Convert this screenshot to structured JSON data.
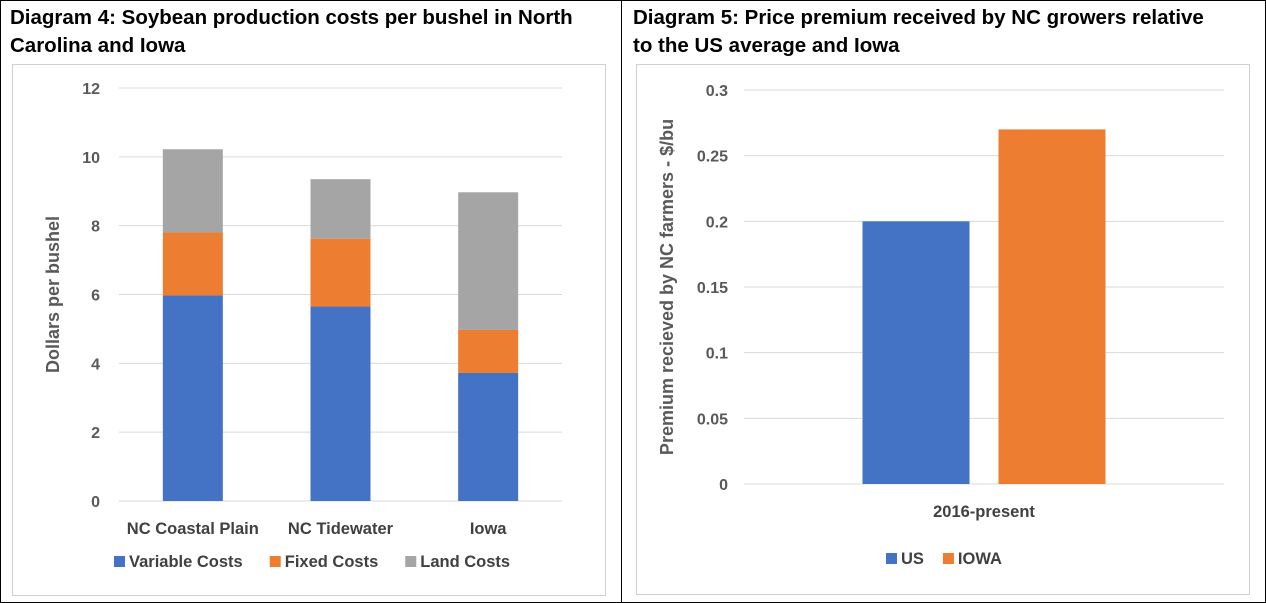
{
  "chart_data": [
    {
      "type": "bar",
      "stacked": true,
      "title": "Diagram 4: Soybean production costs per bushel in North Carolina and Iowa",
      "title_lines": [
        "Diagram 4: Soybean production costs per bushel in North",
        "Carolina and Iowa"
      ],
      "categories": [
        "NC Coastal Plain",
        "NC Tidewater",
        "Iowa"
      ],
      "series": [
        {
          "name": "Variable Costs",
          "values": [
            5.97,
            5.65,
            3.72
          ],
          "color": "#4472C4"
        },
        {
          "name": "Fixed Costs",
          "values": [
            1.83,
            1.97,
            1.25
          ],
          "color": "#ED7D31"
        },
        {
          "name": "Land Costs",
          "values": [
            2.42,
            1.73,
            4.0
          ],
          "color": "#A5A5A5"
        }
      ],
      "ylabel": "Dollars per bushel",
      "ylim": [
        0,
        12
      ],
      "yticks": [
        "0",
        "2",
        "4",
        "6",
        "8",
        "10",
        "12"
      ],
      "grid": true,
      "legend": "bottom"
    },
    {
      "type": "bar",
      "title": "Diagram 5: Price premium received by NC growers relative to the US average and Iowa",
      "title_lines": [
        "Diagram 5: Price premium received by NC growers relative",
        "to the US average and Iowa"
      ],
      "categories": [
        "2016-present"
      ],
      "series": [
        {
          "name": "US",
          "values": [
            0.2
          ],
          "color": "#4472C4"
        },
        {
          "name": "IOWA",
          "values": [
            0.27
          ],
          "color": "#ED7D31"
        }
      ],
      "ylabel": "Premium recieved by NC farmers - $/bu",
      "ylim": [
        0,
        0.3
      ],
      "yticks": [
        "0",
        "0.05",
        "0.1",
        "0.15",
        "0.2",
        "0.25",
        "0.3"
      ],
      "grid": true,
      "legend": "bottom"
    }
  ]
}
